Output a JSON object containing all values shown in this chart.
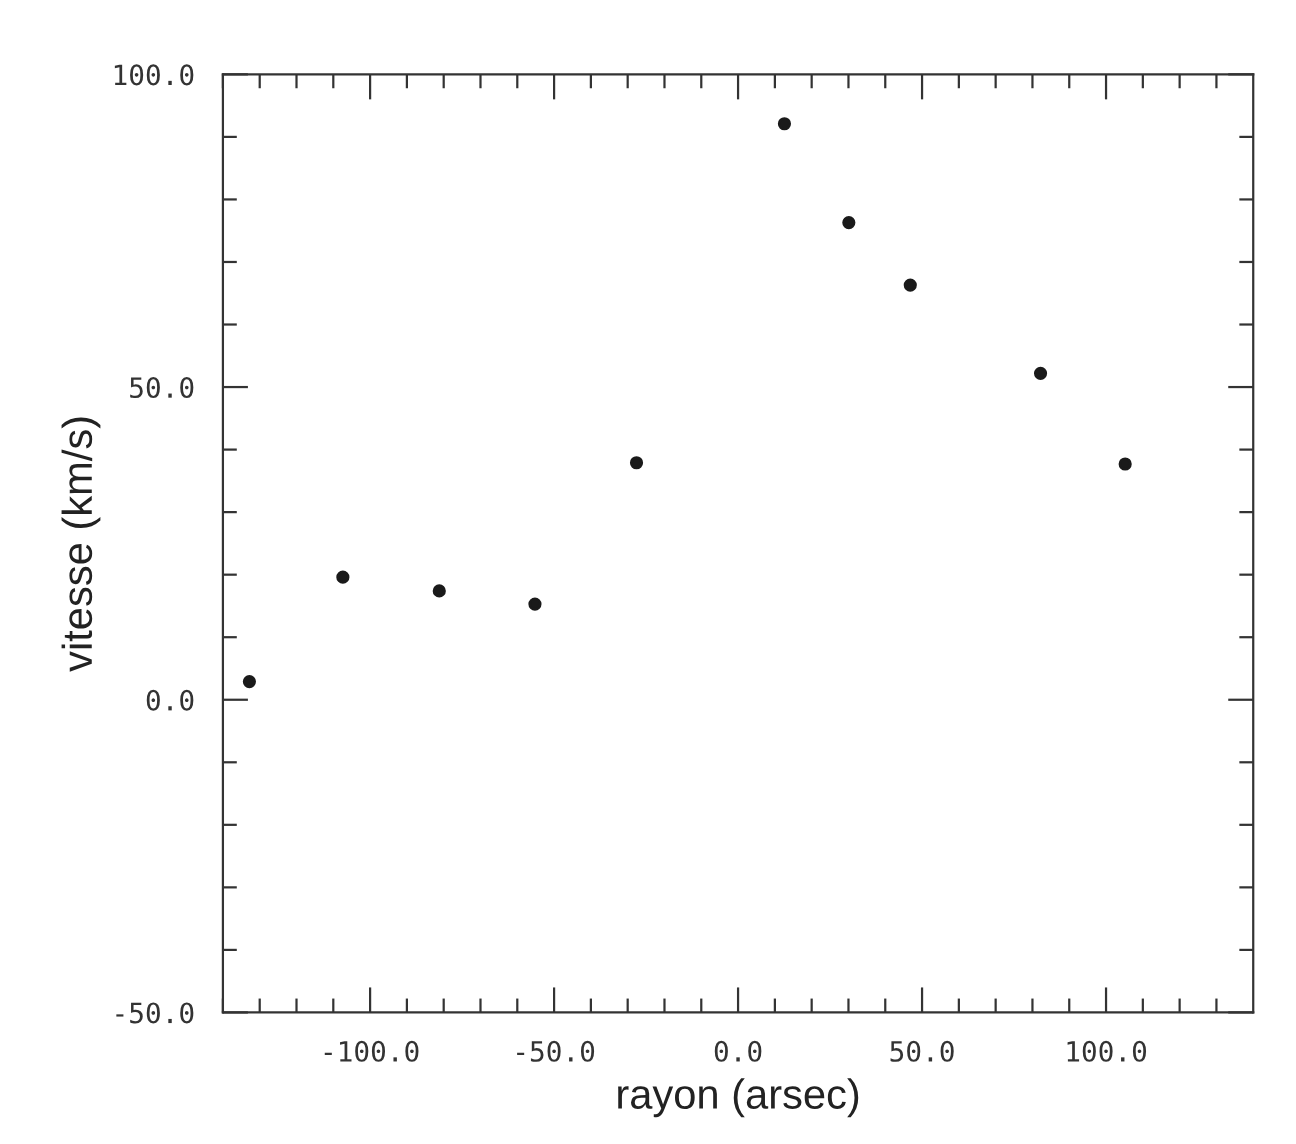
{
  "chart_data": {
    "type": "scatter",
    "xlabel": "rayon (arsec)",
    "ylabel": "vitesse (km/s)",
    "x": [
      -132.8,
      -107.4,
      -81.2,
      -55.2,
      -27.6,
      12.6,
      30.1,
      46.8,
      82.2,
      105.2
    ],
    "series": [
      {
        "color": "#1a1a1a",
        "values": [
          2.9,
          19.6,
          17.4,
          15.3,
          37.9,
          92.1,
          76.3,
          66.3,
          52.2,
          37.7
        ]
      }
    ],
    "marker": "circle",
    "grid": false,
    "legend": false,
    "xlim": [
      -140,
      140
    ],
    "ylim": [
      -50,
      100
    ],
    "xticks": [
      {
        "value": -140,
        "label": null
      },
      {
        "value": -130,
        "label": null
      },
      {
        "value": -120,
        "label": null
      },
      {
        "value": -110,
        "label": null
      },
      {
        "value": -100,
        "label": "-100.0"
      },
      {
        "value": -90,
        "label": null
      },
      {
        "value": -80,
        "label": null
      },
      {
        "value": -70,
        "label": null
      },
      {
        "value": -60,
        "label": null
      },
      {
        "value": -50,
        "label": "-50.0"
      },
      {
        "value": -40,
        "label": null
      },
      {
        "value": -30,
        "label": null
      },
      {
        "value": -20,
        "label": null
      },
      {
        "value": -10,
        "label": null
      },
      {
        "value": 0,
        "label": "0.0"
      },
      {
        "value": 10,
        "label": null
      },
      {
        "value": 20,
        "label": null
      },
      {
        "value": 30,
        "label": null
      },
      {
        "value": 40,
        "label": null
      },
      {
        "value": 50,
        "label": "50.0"
      },
      {
        "value": 60,
        "label": null
      },
      {
        "value": 70,
        "label": null
      },
      {
        "value": 80,
        "label": null
      },
      {
        "value": 90,
        "label": null
      },
      {
        "value": 100,
        "label": "100.0"
      },
      {
        "value": 110,
        "label": null
      },
      {
        "value": 120,
        "label": null
      },
      {
        "value": 130,
        "label": null
      }
    ],
    "yticks": [
      {
        "value": -50,
        "label": "-50.0"
      },
      {
        "value": -40,
        "label": null
      },
      {
        "value": -30,
        "label": null
      },
      {
        "value": -20,
        "label": null
      },
      {
        "value": -10,
        "label": null
      },
      {
        "value": 0,
        "label": "0.0"
      },
      {
        "value": 10,
        "label": null
      },
      {
        "value": 20,
        "label": null
      },
      {
        "value": 30,
        "label": null
      },
      {
        "value": 40,
        "label": null
      },
      {
        "value": 50,
        "label": "50.0"
      },
      {
        "value": 60,
        "label": null
      },
      {
        "value": 70,
        "label": null
      },
      {
        "value": 80,
        "label": null
      },
      {
        "value": 90,
        "label": null
      },
      {
        "value": 100,
        "label": "100.0"
      }
    ]
  }
}
